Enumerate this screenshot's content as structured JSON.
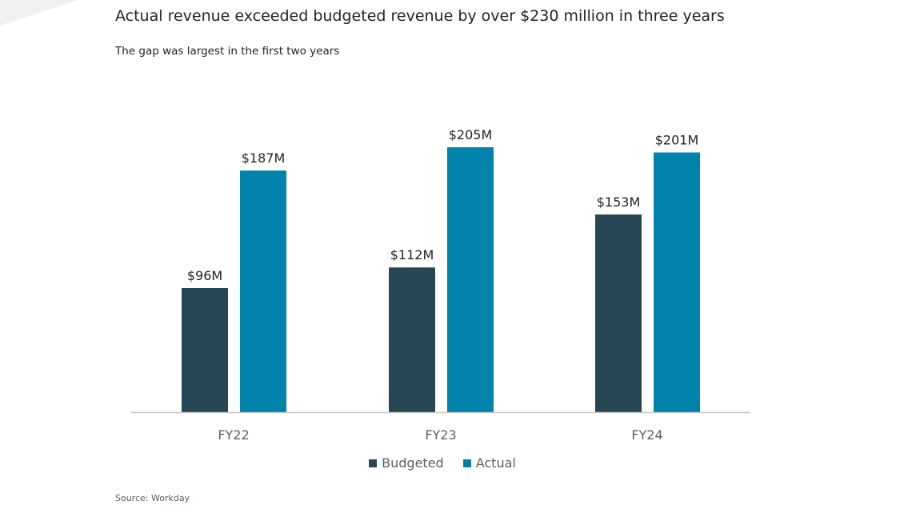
{
  "header": {
    "title": "Actual revenue exceeded budgeted revenue by over $230 million in three years",
    "subtitle": "The gap was largest in the first two years"
  },
  "footer": {
    "source": "Source: Workday"
  },
  "colors": {
    "budgeted": "#264653",
    "actual": "#0082ab",
    "axis": "#c8c6c4",
    "label_text": "#252423",
    "tick_text": "#605e5c"
  },
  "chart_data": {
    "type": "bar",
    "title": "Actual revenue exceeded budgeted revenue by over $230 million in three years",
    "subtitle": "The gap was largest in the first two years",
    "categories": [
      "FY22",
      "FY23",
      "FY24"
    ],
    "series": [
      {
        "name": "Budgeted",
        "values": [
          96,
          112,
          153
        ],
        "labels": [
          "$96M",
          "$112M",
          "$153M"
        ]
      },
      {
        "name": "Actual",
        "values": [
          187,
          205,
          201
        ],
        "labels": [
          "$187M",
          "$205M",
          "$201M"
        ]
      }
    ],
    "ylim": [
      0,
      205
    ],
    "grid": false,
    "legend": "bottom-center"
  }
}
